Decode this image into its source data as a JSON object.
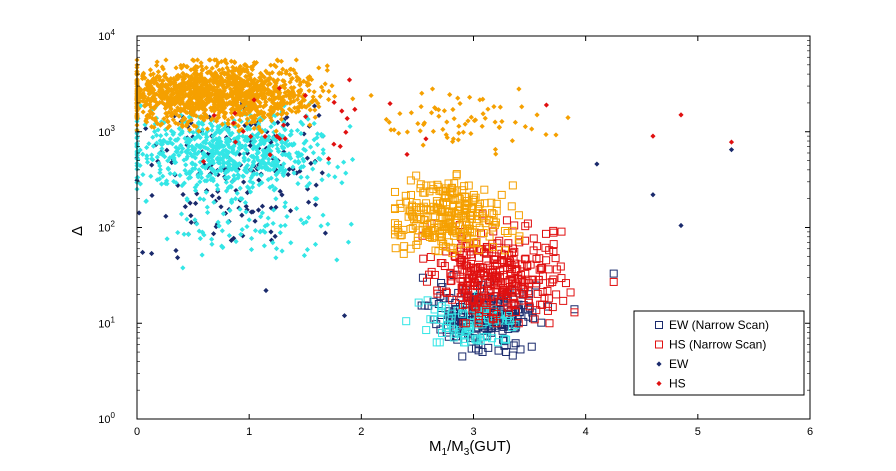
{
  "chart_data": {
    "type": "scatter",
    "title": "",
    "xlabel": "M",
    "xlabel_sub1": "1",
    "xlabel_mid": "/M",
    "xlabel_sub2": "3",
    "xlabel_suffix": "(GUT)",
    "ylabel": "Δ",
    "xlim": [
      0,
      6
    ],
    "ylim_log10": [
      0,
      4
    ],
    "yscale": "log",
    "x_ticks": [
      0,
      1,
      2,
      3,
      4,
      5,
      6
    ],
    "y_ticks": [
      {
        "base": "10",
        "exp": "0"
      },
      {
        "base": "10",
        "exp": "1"
      },
      {
        "base": "10",
        "exp": "2"
      },
      {
        "base": "10",
        "exp": "3"
      },
      {
        "base": "10",
        "exp": "4"
      }
    ],
    "legend_position": "bottom-right",
    "colors": {
      "ew_dark": "#1a2a6c",
      "ew_light": "#33e6e6",
      "hs_red": "#e01010",
      "hs_orange": "#f5a000"
    },
    "series": [
      {
        "name": "EW (Narrow Scan)",
        "marker": "square-open",
        "color": "#1a2a6c",
        "clusters": [
          {
            "x_range": [
              2.5,
              3.8
            ],
            "log_y_range": [
              0.7,
              1.6
            ],
            "n": 220,
            "center_x": 3.1,
            "center_log_y": 1.1
          },
          {
            "x_range": [
              2.4,
              3.6
            ],
            "log_y_range": [
              0.8,
              1.5
            ],
            "n": 80,
            "center_x": 3.0,
            "center_log_y": 1.0,
            "color": "#33e6e6"
          }
        ],
        "points": [
          {
            "x": 4.25,
            "y": 33
          },
          {
            "x": 3.9,
            "y": 14
          },
          {
            "x": 2.9,
            "y": 4.5
          },
          {
            "x": 3.35,
            "y": 4.6
          }
        ]
      },
      {
        "name": "HS (Narrow Scan)",
        "marker": "square-open",
        "color": "#e01010",
        "clusters": [
          {
            "x_range": [
              2.4,
              3.9
            ],
            "log_y_range": [
              1.0,
              2.3
            ],
            "n": 320,
            "center_x": 3.2,
            "center_log_y": 1.5
          },
          {
            "x_range": [
              2.3,
              3.7
            ],
            "log_y_range": [
              1.6,
              2.6
            ],
            "n": 260,
            "center_x": 2.8,
            "center_log_y": 2.1,
            "color": "#f5a000"
          }
        ],
        "points": [
          {
            "x": 4.25,
            "y": 27
          },
          {
            "x": 3.9,
            "y": 13
          }
        ]
      },
      {
        "name": "EW",
        "marker": "diamond-filled",
        "color": "#1a2a6c",
        "clusters": [
          {
            "x_range": [
              0.0,
              2.4
            ],
            "log_y_range": [
              1.1,
              3.3
            ],
            "n": 160,
            "center_x": 0.8,
            "center_log_y": 2.6
          },
          {
            "x_range": [
              0.0,
              2.4
            ],
            "log_y_range": [
              2.2,
              3.3
            ],
            "n": 700,
            "center_x": 0.8,
            "center_log_y": 2.8,
            "color": "#33e6e6"
          },
          {
            "x_range": [
              0.0,
              2.2
            ],
            "log_y_range": [
              1.3,
              2.3
            ],
            "n": 90,
            "center_x": 1.0,
            "center_log_y": 2.0,
            "color": "#33e6e6"
          }
        ],
        "points": [
          {
            "x": 0.05,
            "y": 55
          },
          {
            "x": 1.15,
            "y": 22
          },
          {
            "x": 1.85,
            "y": 12
          },
          {
            "x": 4.85,
            "y": 105
          },
          {
            "x": 5.3,
            "y": 650
          },
          {
            "x": 4.1,
            "y": 460
          },
          {
            "x": 4.6,
            "y": 220
          }
        ]
      },
      {
        "name": "HS",
        "marker": "diamond-filled",
        "color": "#e01010",
        "clusters": [
          {
            "x_range": [
              0.0,
              2.3
            ],
            "log_y_range": [
              2.9,
              3.75
            ],
            "n": 1300,
            "center_x": 0.7,
            "center_log_y": 3.4,
            "color": "#f5a000"
          },
          {
            "x_range": [
              2.0,
              4.2
            ],
            "log_y_range": [
              2.7,
              3.5
            ],
            "n": 70,
            "center_x": 2.8,
            "center_log_y": 3.1,
            "color": "#f5a000"
          },
          {
            "x_range": [
              0.0,
              3.5
            ],
            "log_y_range": [
              2.4,
              3.6
            ],
            "n": 30,
            "center_x": 1.5,
            "center_log_y": 3.0
          }
        ],
        "points": [
          {
            "x": 4.85,
            "y": 1500
          },
          {
            "x": 3.65,
            "y": 1900
          },
          {
            "x": 5.3,
            "y": 780
          },
          {
            "x": 4.6,
            "y": 900
          }
        ]
      }
    ]
  }
}
